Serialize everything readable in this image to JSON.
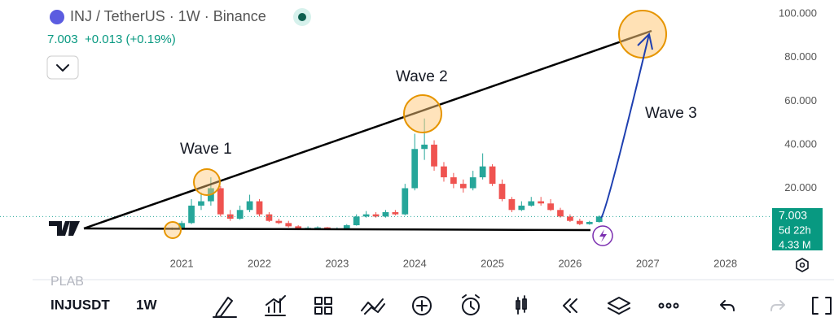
{
  "header": {
    "symbol_title": "INJ / TetherUS · 1W · Binance",
    "change": "+0.013 (+0.19%)"
  },
  "chart_data": {
    "type": "candlestick",
    "x": [
      2020.875,
      2021,
      2021.125,
      2021.25,
      2021.375,
      2021.5,
      2021.625,
      2021.75,
      2021.875,
      2022,
      2022.125,
      2022.25,
      2022.375,
      2022.5,
      2022.625,
      2022.75,
      2022.875,
      2023,
      2023.125,
      2023.25,
      2023.375,
      2023.5,
      2023.625,
      2023.75,
      2023.875,
      2024,
      2024.125,
      2024.25,
      2024.375,
      2024.5,
      2024.625,
      2024.75,
      2024.875,
      2025,
      2025.125,
      2025.25,
      2025.375,
      2025.5,
      2025.625,
      2025.75,
      2025.875,
      2026,
      2026.125,
      2026.25,
      2026.375
    ],
    "open": [
      1,
      1.5,
      4,
      12,
      14,
      20,
      8,
      6,
      10,
      14,
      8,
      5,
      4,
      2.5,
      1.5,
      1.8,
      2,
      1.3,
      1.5,
      3,
      7,
      8,
      7,
      9,
      8,
      20,
      38,
      40,
      30,
      25,
      22,
      20,
      25,
      30,
      22,
      15,
      10,
      12,
      14,
      13,
      10,
      7,
      5,
      3.5,
      4.5
    ],
    "high": [
      2,
      5,
      15,
      18,
      25,
      21,
      10,
      12,
      17,
      15,
      9,
      6,
      5,
      3,
      2.5,
      2.5,
      2.2,
      2,
      3.5,
      8,
      9.5,
      9,
      10,
      10,
      22,
      45,
      52,
      42,
      32,
      27,
      24,
      28,
      36,
      31,
      24,
      16,
      14,
      16,
      16,
      15,
      11,
      8,
      6,
      5,
      7.5
    ],
    "low": [
      0.8,
      1.2,
      3.5,
      10,
      12,
      7,
      5,
      5.5,
      9,
      7,
      4.5,
      3.5,
      2,
      1.2,
      1.3,
      1.6,
      1.1,
      1.1,
      1.4,
      2.8,
      6.5,
      6.5,
      6.5,
      7.5,
      7.5,
      19,
      33,
      28,
      23,
      20,
      18,
      19,
      24,
      21,
      14,
      9,
      9.5,
      11.5,
      12,
      9.5,
      6.5,
      4.5,
      3,
      3.2,
      4.2
    ],
    "close": [
      1.5,
      4,
      12,
      14,
      20,
      8,
      6,
      10,
      14,
      8,
      5,
      4,
      2.5,
      1.5,
      1.8,
      2,
      1.3,
      1.5,
      3,
      7,
      8,
      7,
      9,
      8,
      20,
      38,
      40,
      30,
      25,
      22,
      20,
      25,
      30,
      22,
      15,
      10,
      12,
      14,
      13,
      10,
      7,
      5,
      3.5,
      4.5,
      7.003
    ],
    "up_color": "#26a69a",
    "down_color": "#ef5350",
    "xlim": [
      2018.66,
      2028.57
    ],
    "xticks": [
      2021,
      2022,
      2023,
      2024,
      2025,
      2026,
      2027,
      2028
    ],
    "ylim": [
      -9.3,
      106.4
    ],
    "yticks": [
      {
        "value": 20,
        "label": "20.000"
      },
      {
        "value": 40,
        "label": "40.000"
      },
      {
        "value": 60,
        "label": "60.000"
      },
      {
        "value": 80,
        "label": "80.000"
      },
      {
        "value": 100,
        "label": "100.000"
      }
    ],
    "annotations": [
      "Wave 1",
      "Wave 2",
      "Wave 3"
    ],
    "price_tag": {
      "countdown": "5d 22h",
      "volume": "4.33 M"
    }
  },
  "toolbar": {
    "prev_symbol": "PLAB",
    "symbol": "INJUSDT",
    "interval": "1W"
  }
}
